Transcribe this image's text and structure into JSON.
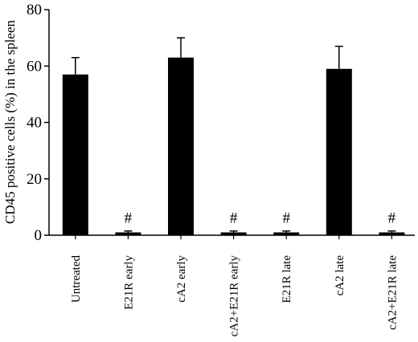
{
  "chart_data": {
    "type": "bar",
    "ylabel": "CD45 positive cells (%) in the spleen",
    "xlabel": "",
    "title": "",
    "ylim": [
      0,
      80
    ],
    "yticks": [
      0,
      20,
      40,
      60,
      80
    ],
    "grid": false,
    "legend": "none",
    "bar_color": "#000000",
    "categories": [
      "Untreated",
      "E21R early",
      "cA2 early",
      "cA2+E21R early",
      "E21R late",
      "cA2 late",
      "cA2+E21R late"
    ],
    "values": [
      57,
      1,
      63,
      1,
      1,
      59,
      1
    ],
    "errors": [
      6,
      0.5,
      7,
      0.5,
      0.5,
      8,
      0.5
    ],
    "significance": [
      "",
      "#",
      "",
      "#",
      "#",
      "",
      "#"
    ]
  }
}
